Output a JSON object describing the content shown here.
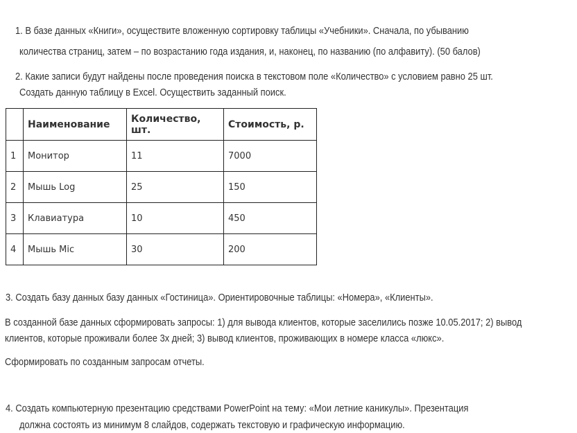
{
  "task1": {
    "lines": [
      "1. В базе данных «Книги», осуществите вложенную сортировку таблицы «Учебники». Сначала, по убыванию",
      "количества страниц, затем – по возрастанию года издания, и, наконец, по названию (по алфавиту). (50 балов)"
    ]
  },
  "task2": {
    "lines": [
      "2. Какие записи будут найдены после проведения поиска в текстовом поле «Количество» с условием равно 25 шт.",
      "Создать данную таблицу в Excel. Осуществить заданный поиск."
    ],
    "table": {
      "headers": [
        "",
        "Наименование",
        "Количество, шт.",
        "Стоимость, р."
      ],
      "rows": [
        [
          "1",
          "Монитор",
          "11",
          "7000"
        ],
        [
          "2",
          "Мышь Log",
          "25",
          "150"
        ],
        [
          "3",
          "Клавиатура",
          "10",
          "450"
        ],
        [
          "4",
          "Мышь Mic",
          "30",
          "200"
        ]
      ]
    }
  },
  "task3": {
    "title": "3. Создать базу данных базу данных «Гостиница». Ориентировочные таблицы: «Номера», «Клиенты».",
    "para_lines": [
      "В созданной базе данных сформировать запросы: 1) для вывода клиентов, которые заселились позже 10.05.2017; 2) вывод",
      "клиентов, которые проживали более 3х дней; 3) вывод клиентов, проживающих в номере класса «люкс»."
    ],
    "para2": "Сформировать по созданным запросам отчеты."
  },
  "task4": {
    "lines": [
      "4. Создать компьютерную презентацию средствами PowerPoint на тему: «Мои летние каникулы». Презентация",
      "должна состоять из минимум 8 слайдов, содержать текстовую и графическую информацию."
    ]
  }
}
